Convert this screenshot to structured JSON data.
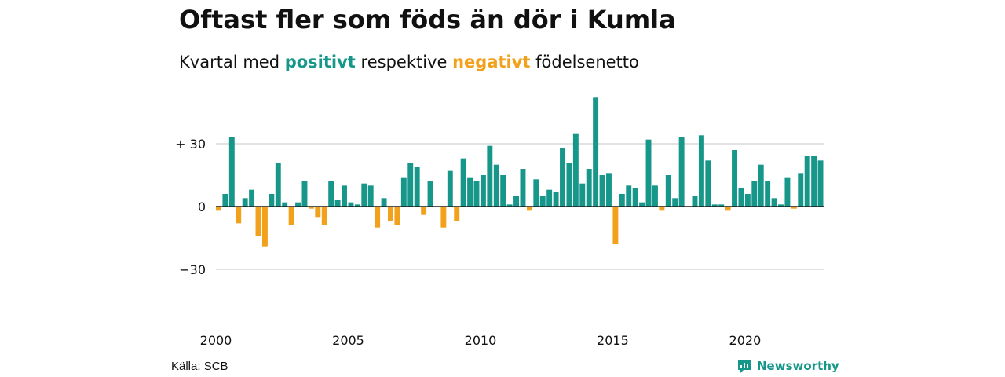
{
  "header": {
    "title": "Oftast fler som föds än dör i Kumla",
    "subtitle_before": "Kvartal med",
    "subtitle_positive": "positivt",
    "subtitle_middle": "respektive",
    "subtitle_negative": "negativt",
    "subtitle_after": "födelsenetto"
  },
  "footer": {
    "source": "Källa: SCB",
    "brand": "Newsworthy",
    "brand_icon": "newsworthy-logo-icon"
  },
  "colors": {
    "positive": "#17978a",
    "negative": "#f2a11c",
    "grid": "#d9d9d9",
    "zero_line": "#1a1a1a"
  },
  "chart_data": {
    "type": "bar",
    "title": "Oftast fler som föds än dör i Kumla",
    "subtitle": "Kvartal med positivt respektive negativt födelsenetto",
    "x_start": "2000 Q1",
    "x_ticks": [
      {
        "year": 2000,
        "label": "2000"
      },
      {
        "year": 2005,
        "label": "2005"
      },
      {
        "year": 2010,
        "label": "2010"
      },
      {
        "year": 2015,
        "label": "2015"
      },
      {
        "year": 2020,
        "label": "2020"
      }
    ],
    "y_ticks": [
      {
        "value": 30,
        "label": "+ 30"
      },
      {
        "value": 0,
        "label": "0"
      },
      {
        "value": -30,
        "label": "−30"
      }
    ],
    "ylim": [
      -40,
      54
    ],
    "grid": true,
    "values": [
      -2,
      6,
      33,
      -8,
      4,
      8,
      -14,
      -19,
      6,
      21,
      2,
      -9,
      2,
      12,
      -1,
      -5,
      -9,
      12,
      3,
      10,
      2,
      1,
      11,
      10,
      -10,
      4,
      -7,
      -9,
      14,
      21,
      19,
      -4,
      12,
      0,
      -10,
      17,
      -7,
      23,
      14,
      12,
      15,
      29,
      20,
      15,
      1,
      5,
      18,
      -2,
      13,
      5,
      8,
      7,
      28,
      21,
      35,
      11,
      18,
      52,
      15,
      16,
      -18,
      6,
      10,
      9,
      2,
      32,
      10,
      -2,
      15,
      4,
      33,
      0,
      5,
      34,
      22,
      1,
      1,
      -2,
      27,
      9,
      6,
      12,
      20,
      12,
      4,
      1,
      14,
      -1,
      16,
      24,
      24,
      22
    ]
  }
}
